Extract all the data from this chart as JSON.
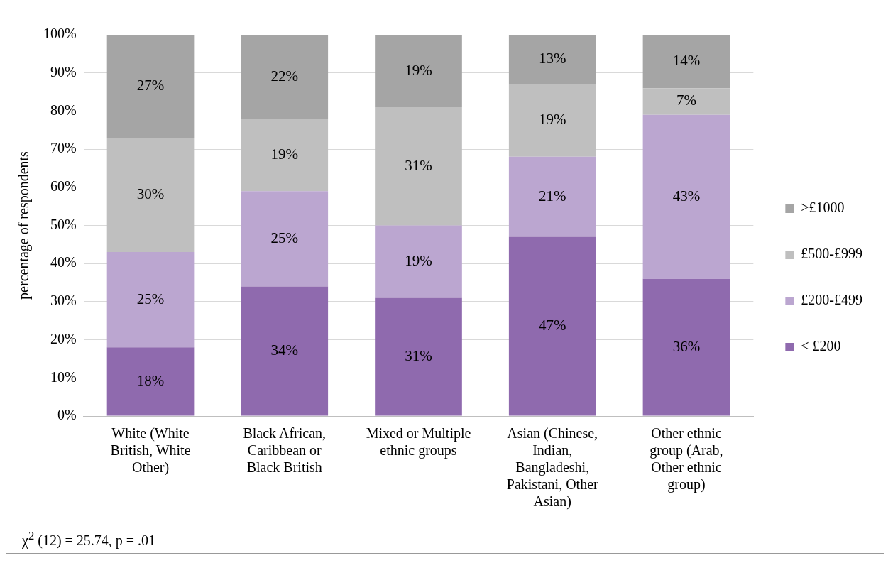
{
  "chart_data": {
    "type": "bar",
    "stacked": true,
    "ylabel": "percentage of respondents",
    "categories": [
      "White (White British, White Other)",
      "Black African, Caribbean or Black British",
      "Mixed or Multiple ethnic groups",
      "Asian (Chinese, Indian, Bangladeshi, Pakistani, Other Asian)",
      "Other ethnic group (Arab, Other ethnic group)"
    ],
    "series": [
      {
        "name": "< £200",
        "color": "#8f6aae",
        "values": [
          18,
          34,
          31,
          47,
          36
        ],
        "value_labels": [
          "18%",
          "34%",
          "31%",
          "47%",
          "36%"
        ]
      },
      {
        "name": "£200-£499",
        "color": "#bba6d0",
        "values": [
          25,
          25,
          19,
          21,
          43
        ],
        "value_labels": [
          "25%",
          "25%",
          "19%",
          "21%",
          "43%"
        ]
      },
      {
        "name": "£500-£999",
        "color": "#bfbfbf",
        "values": [
          30,
          19,
          31,
          19,
          7
        ],
        "value_labels": [
          "30%",
          "19%",
          "31%",
          "19%",
          "7%"
        ]
      },
      {
        "name": ">£1000",
        "color": "#a5a5a5",
        "values": [
          27,
          22,
          19,
          13,
          14
        ],
        "value_labels": [
          "27%",
          "22%",
          "19%",
          "13%",
          "14%"
        ]
      }
    ],
    "ylim": [
      0,
      100
    ],
    "yticks": [
      {
        "value": 0,
        "label": "0%"
      },
      {
        "value": 10,
        "label": "10%"
      },
      {
        "value": 20,
        "label": "20%"
      },
      {
        "value": 30,
        "label": "30%"
      },
      {
        "value": 40,
        "label": "40%"
      },
      {
        "value": 50,
        "label": "50%"
      },
      {
        "value": 60,
        "label": "60%"
      },
      {
        "value": 70,
        "label": "70%"
      },
      {
        "value": 80,
        "label": "80%"
      },
      {
        "value": 90,
        "label": "90%"
      },
      {
        "value": 100,
        "label": "100%"
      }
    ],
    "grid": "y",
    "legend": "right",
    "annotations": [
      "χ$^{2}$ (12) = 25.74, p = .01"
    ]
  }
}
